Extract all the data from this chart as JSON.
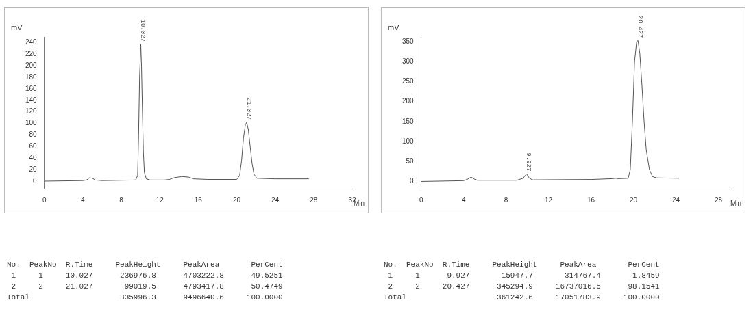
{
  "chart_data": [
    {
      "type": "line",
      "xlabel": "Min",
      "ylabel": "mV",
      "xlim": [
        0,
        32
      ],
      "ylim": [
        -13,
        250
      ],
      "xticks": [
        0,
        4,
        8,
        12,
        16,
        20,
        24,
        28,
        32
      ],
      "yticks": [
        0,
        20,
        40,
        60,
        80,
        100,
        120,
        140,
        160,
        180,
        200,
        220,
        240
      ],
      "series": [
        {
          "color": "#555555",
          "x": [
            0,
            4,
            4.4,
            4.7,
            5.0,
            5.3,
            6,
            9.5,
            9.7,
            9.8,
            9.9,
            10.027,
            10.1,
            10.2,
            10.3,
            10.4,
            10.6,
            11,
            12.5,
            13,
            13.5,
            14.3,
            15,
            15.5,
            17,
            20,
            20.3,
            20.5,
            20.7,
            20.9,
            21.027,
            21.2,
            21.4,
            21.6,
            21.8,
            22.1,
            24,
            27.5
          ],
          "values": [
            0,
            1,
            2,
            6,
            5,
            2,
            1,
            2,
            10,
            80,
            180,
            237,
            200,
            120,
            50,
            15,
            4,
            2,
            2,
            3,
            6,
            8,
            7,
            4,
            3,
            3,
            10,
            35,
            75,
            98,
            102,
            90,
            60,
            30,
            12,
            5,
            4,
            4
          ]
        }
      ],
      "annotations": [
        {
          "text": "10.027",
          "x": 10.027,
          "y": 237
        },
        {
          "text": "21.027",
          "x": 21.027,
          "y": 102
        },
        "No.  PeakNo  R.Time     PeakHeight     PeakArea       PerCent",
        " 1     1     10.027      236976.8      4703222.8      49.5251",
        " 2     2     21.027       99019.5      4793417.8      50.4749",
        "Total                    335996.3      9496640.6     100.0000"
      ]
    },
    {
      "type": "line",
      "xlabel": "Min",
      "ylabel": "mV",
      "xlim": [
        0,
        29
      ],
      "ylim": [
        -18,
        362
      ],
      "xticks": [
        0,
        4,
        8,
        12,
        16,
        20,
        24,
        28
      ],
      "yticks": [
        0,
        50,
        100,
        150,
        200,
        250,
        300,
        350
      ],
      "series": [
        {
          "color": "#555555",
          "x": [
            0,
            4,
            4.4,
            4.7,
            5.0,
            5.3,
            9,
            9.6,
            9.927,
            10.2,
            10.5,
            16,
            18,
            18.3,
            18.6,
            19.5,
            19.7,
            19.9,
            20.1,
            20.3,
            20.427,
            20.6,
            20.8,
            21.0,
            21.2,
            21.5,
            21.8,
            22.2,
            24.3
          ],
          "values": [
            0,
            2,
            6,
            11,
            6,
            3,
            3,
            8,
            19,
            8,
            4,
            5,
            7,
            8,
            7,
            8,
            30,
            150,
            300,
            350,
            353,
            320,
            240,
            150,
            80,
            30,
            12,
            9,
            8
          ]
        }
      ],
      "annotations": [
        {
          "text": "9.927",
          "x": 9.927,
          "y": 19
        },
        {
          "text": "20.427",
          "x": 20.427,
          "y": 353
        },
        "No.  PeakNo  R.Time     PeakHeight     PeakArea       PerCent",
        " 1     1      9.927       15947.7       314767.4       1.8459",
        " 2     2     20.427      345294.9     16737016.5      98.1541",
        "Total                    361242.6     17051783.9     100.0000"
      ]
    }
  ]
}
